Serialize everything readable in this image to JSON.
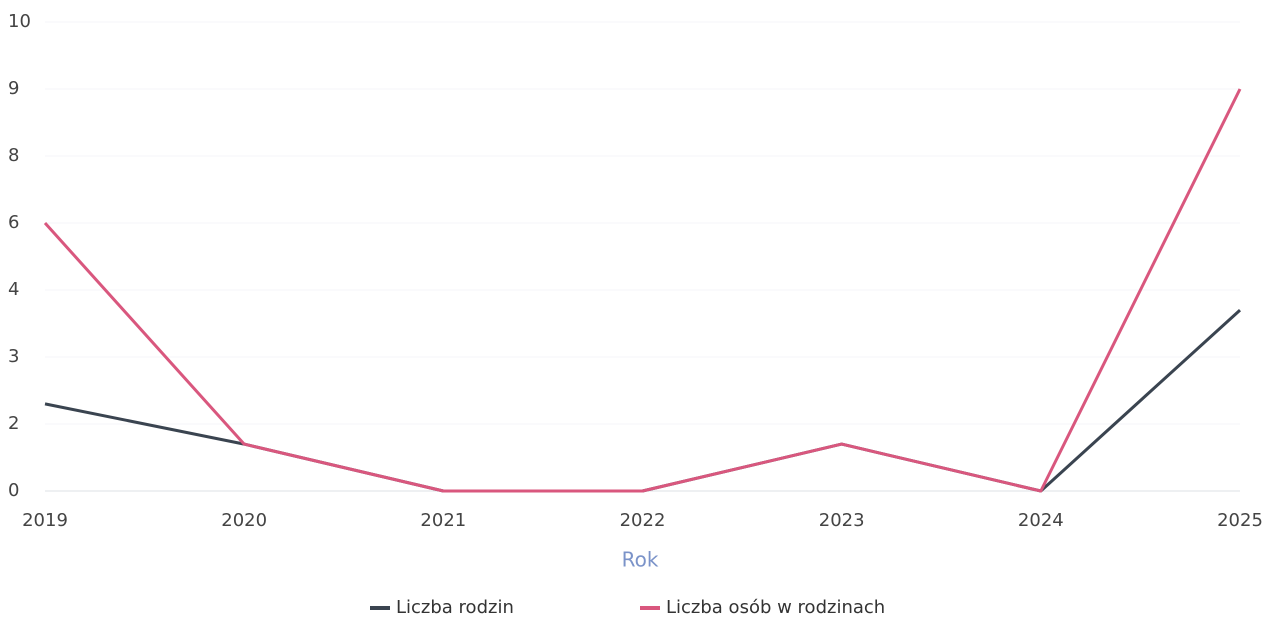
{
  "chart_data": {
    "type": "line",
    "x_label": "Rok",
    "categories": [
      "2019",
      "2020",
      "2021",
      "2022",
      "2023",
      "2024",
      "2025"
    ],
    "series": [
      {
        "name": "Liczba rodzin",
        "color": "#3a4450",
        "values": [
          2.3,
          1.4,
          0,
          0,
          1.4,
          0,
          3.7
        ]
      },
      {
        "name": "Liczba osób w rodzinach",
        "color": "#d9577e",
        "values": [
          6,
          1.4,
          0,
          0,
          1.4,
          0,
          9
        ]
      }
    ],
    "ylim": [
      0,
      10
    ],
    "yticks": [
      0,
      2,
      3,
      4,
      6,
      8,
      9,
      10
    ],
    "grid": true,
    "legend": "bottom"
  }
}
